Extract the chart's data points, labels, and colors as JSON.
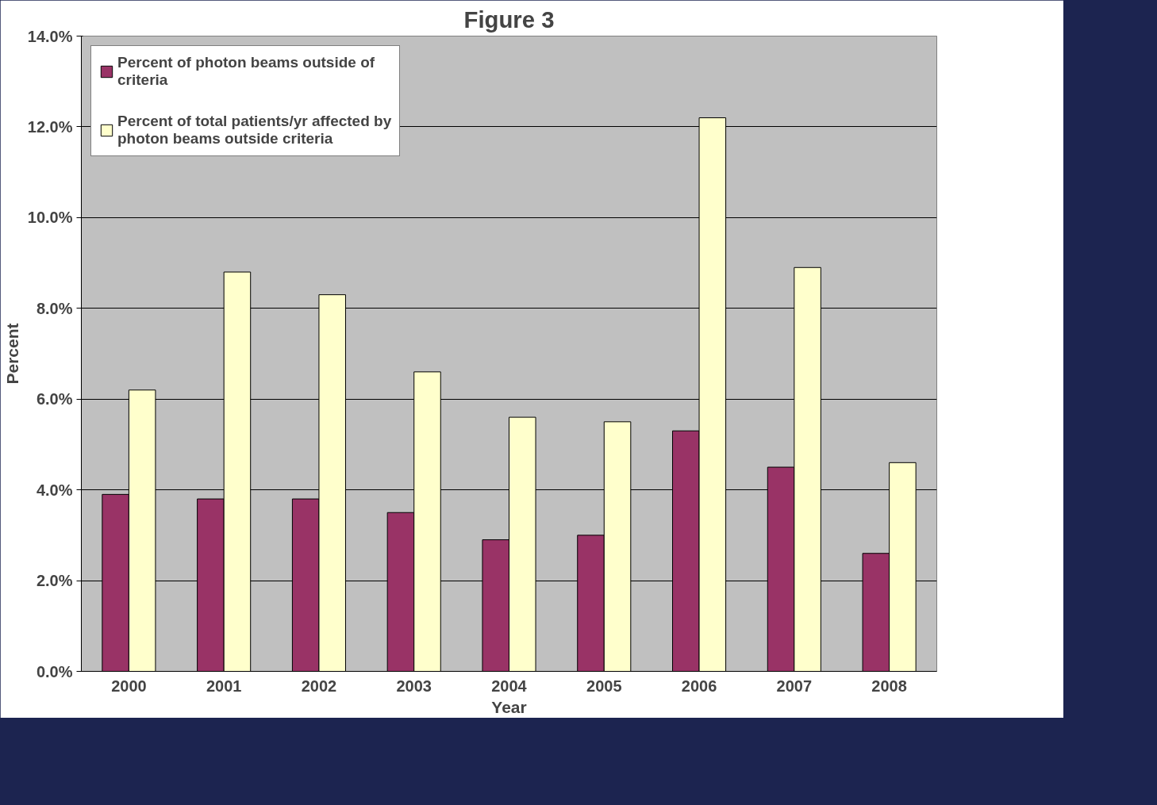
{
  "chart_data": {
    "type": "bar",
    "title": "Figure 3",
    "xlabel": "Year",
    "ylabel": "Percent",
    "categories": [
      "2000",
      "2001",
      "2002",
      "2003",
      "2004",
      "2005",
      "2006",
      "2007",
      "2008"
    ],
    "series": [
      {
        "name": "Percent of photon beams outside of criteria",
        "color": "#993366",
        "values": [
          3.9,
          3.8,
          3.8,
          3.5,
          2.9,
          3.0,
          5.3,
          4.5,
          2.6
        ]
      },
      {
        "name": "Percent of total patients/yr affected by photon beams outside criteria",
        "color": "#ffffcc",
        "values": [
          6.2,
          8.8,
          8.3,
          6.6,
          5.6,
          5.5,
          12.2,
          8.9,
          4.6
        ]
      }
    ],
    "ylim": [
      0,
      14
    ],
    "yticks": [
      {
        "value": 0,
        "label": "0.0%"
      },
      {
        "value": 2,
        "label": "2.0%"
      },
      {
        "value": 4,
        "label": "4.0%"
      },
      {
        "value": 6,
        "label": "6.0%"
      },
      {
        "value": 8,
        "label": "8.0%"
      },
      {
        "value": 10,
        "label": "10.0%"
      },
      {
        "value": 12,
        "label": "12.0%"
      },
      {
        "value": 14,
        "label": "14.0%"
      }
    ],
    "grid": "y",
    "legend": "top left"
  }
}
